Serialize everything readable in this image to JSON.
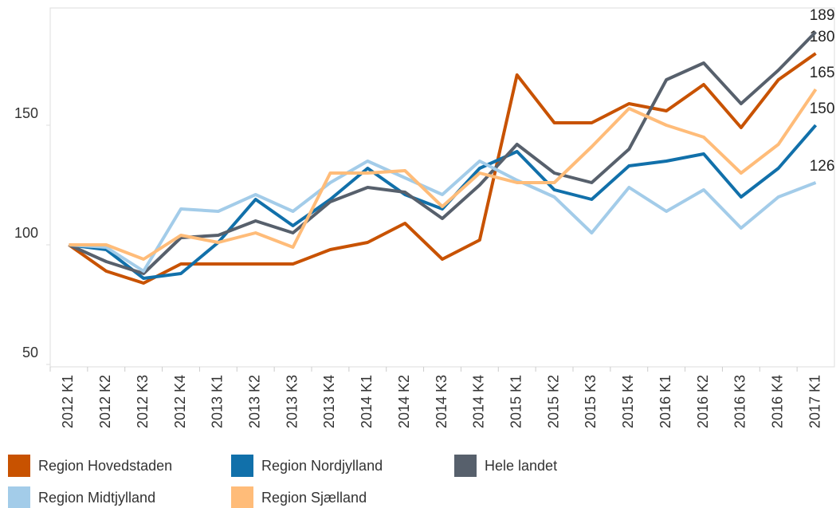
{
  "chart_data": {
    "type": "line",
    "categories": [
      "2012 K1",
      "2012 K2",
      "2012 K3",
      "2012 K4",
      "2013 K1",
      "2013 K2",
      "2013 K3",
      "2013 K4",
      "2014 K1",
      "2014 K2",
      "2014 K3",
      "2014 K4",
      "2015 K1",
      "2015 K2",
      "2015 K3",
      "2015 K4",
      "2016 K1",
      "2016 K2",
      "2016 K3",
      "2016 K4",
      "2017 K1"
    ],
    "series": [
      {
        "name": "Region Hovedstaden",
        "color": "#c85200",
        "values": [
          100,
          89,
          84,
          92,
          92,
          92,
          92,
          98,
          101,
          109,
          94,
          102,
          171,
          151,
          151,
          159,
          156,
          167,
          149,
          169,
          180
        ]
      },
      {
        "name": "Region Nordjylland",
        "color": "#1170aa",
        "values": [
          100,
          98,
          86,
          88,
          101,
          119,
          108,
          119,
          132,
          121,
          115,
          132,
          139,
          123,
          119,
          133,
          135,
          138,
          120,
          132,
          150
        ]
      },
      {
        "name": "Hele landet",
        "color": "#57606c",
        "values": [
          100,
          93,
          88,
          103,
          104,
          110,
          105,
          118,
          124,
          122,
          111,
          125,
          142,
          130,
          126,
          140,
          169,
          176,
          159,
          173,
          189
        ]
      },
      {
        "name": "Region Midtjylland",
        "color": "#a3cce9",
        "values": [
          100,
          99,
          89,
          115,
          114,
          121,
          114,
          126,
          135,
          128,
          121,
          135,
          127,
          120,
          105,
          124,
          114,
          123,
          107,
          120,
          126
        ]
      },
      {
        "name": "Region Sjælland",
        "color": "#ffbc79",
        "values": [
          100,
          100,
          94,
          104,
          101,
          105,
          99,
          130,
          130,
          131,
          116,
          130,
          126,
          126,
          141,
          157,
          150,
          145,
          130,
          142,
          165
        ]
      }
    ],
    "ylim": [
      50,
      200
    ],
    "yticks": [
      50,
      100,
      150
    ],
    "grid": false
  }
}
